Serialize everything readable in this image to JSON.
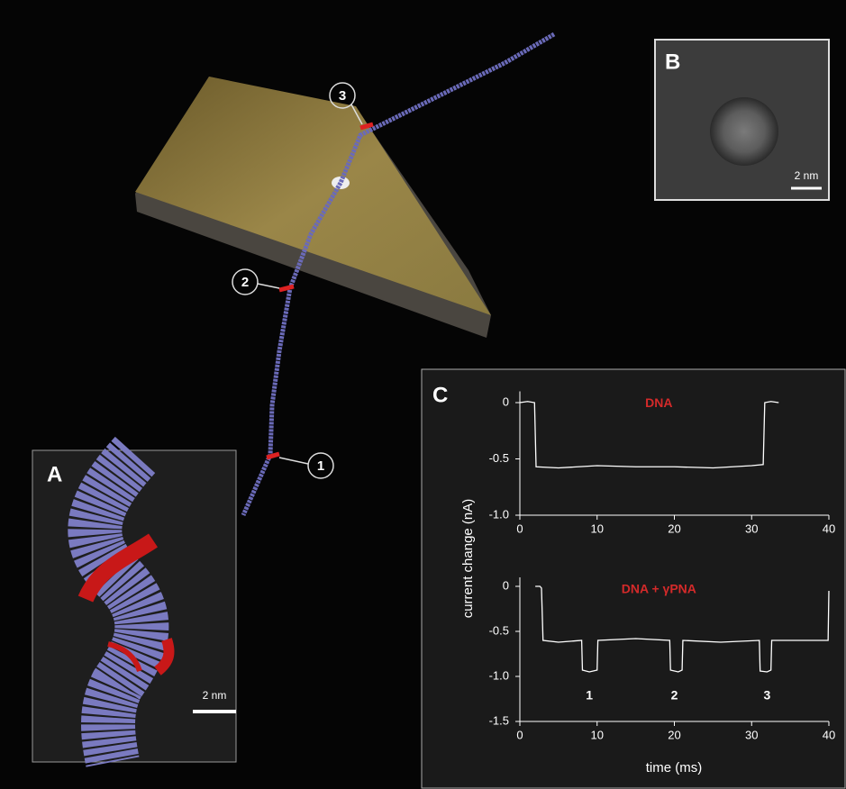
{
  "panels": {
    "a": {
      "label": "A",
      "scale": "2 nm"
    },
    "b": {
      "label": "B",
      "scale": "2 nm"
    },
    "c": {
      "label": "C"
    }
  },
  "markers": [
    "1",
    "2",
    "3"
  ],
  "chart_data": [
    {
      "type": "line",
      "title": "DNA",
      "title_color": "#d42a2a",
      "color": "#ffffff",
      "y_label": "current change (nA)",
      "x": [
        0,
        1,
        1.9,
        2.1,
        5,
        10,
        15,
        20,
        25,
        30,
        31.5,
        31.7,
        32.5,
        33.5
      ],
      "values": [
        0,
        0.01,
        0,
        -0.57,
        -0.58,
        -0.56,
        -0.57,
        -0.57,
        -0.58,
        -0.56,
        -0.55,
        0,
        0.01,
        0
      ],
      "xlim": [
        0,
        40
      ],
      "xticks": [
        0,
        10,
        20,
        30,
        40
      ],
      "ylim": [
        -1.0,
        0.1
      ],
      "yticks": [
        0,
        {
          "value": -0.5,
          "label": "-0.5"
        },
        {
          "value": -1.0,
          "label": "-1.0"
        }
      ]
    },
    {
      "type": "line",
      "title": "DNA + γPNA",
      "title_color": "#d42a2a",
      "color": "#ffffff",
      "x_label": "time (ms)",
      "x": [
        2,
        2.6,
        2.8,
        3,
        5,
        8,
        8.1,
        9,
        10,
        10.1,
        15,
        19.4,
        19.5,
        20.5,
        21,
        21.1,
        26,
        31,
        31.1,
        32,
        32.5,
        32.6,
        36,
        39.9,
        40
      ],
      "values": [
        0,
        0,
        -0.02,
        -0.6,
        -0.62,
        -0.6,
        -0.93,
        -0.95,
        -0.93,
        -0.6,
        -0.58,
        -0.6,
        -0.93,
        -0.95,
        -0.93,
        -0.6,
        -0.62,
        -0.6,
        -0.94,
        -0.95,
        -0.93,
        -0.6,
        -0.6,
        -0.6,
        -0.05
      ],
      "annotations": [
        "1",
        "2",
        "3"
      ],
      "xlim": [
        0,
        40
      ],
      "xticks": [
        0,
        10,
        20,
        30,
        40
      ],
      "ylim": [
        -1.5,
        0.1
      ],
      "yticks": [
        0,
        {
          "value": -0.5,
          "label": "-0.5"
        },
        {
          "value": -1.0,
          "label": "-1.0"
        },
        {
          "value": -1.5,
          "label": "-1.5"
        }
      ]
    }
  ]
}
